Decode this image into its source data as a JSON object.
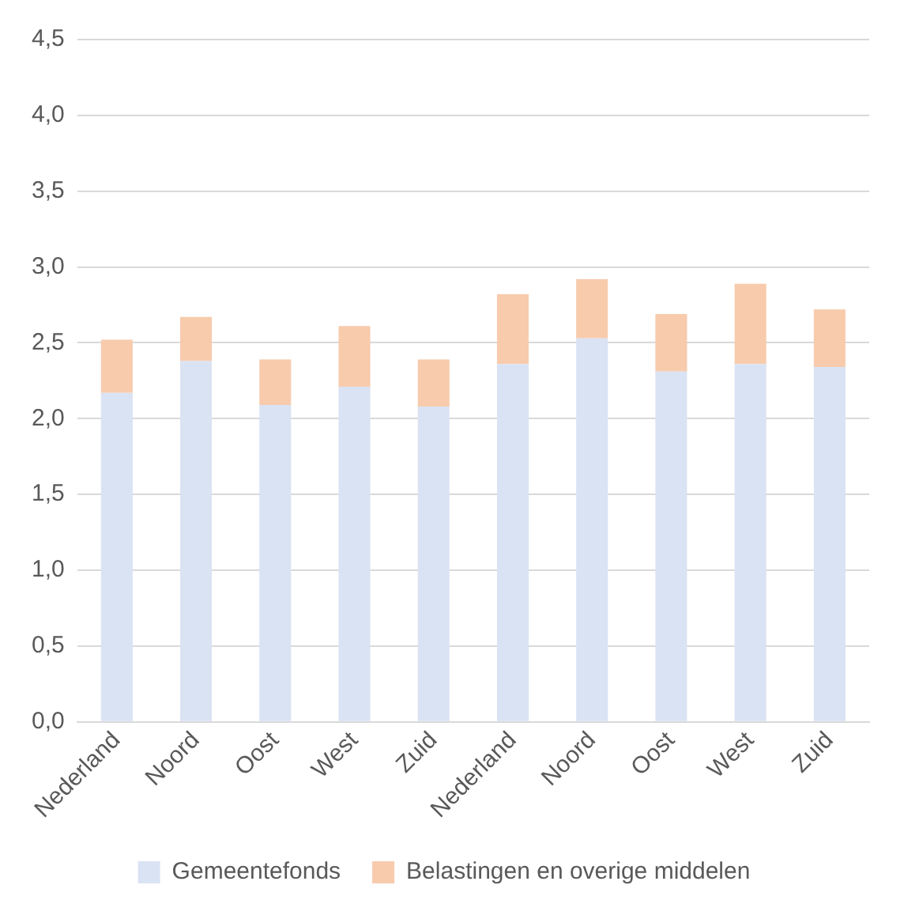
{
  "chart_data": {
    "type": "bar",
    "stacked": true,
    "categories": [
      "Nederland",
      "Noord",
      "Oost",
      "West",
      "Zuid",
      "Nederland",
      "Noord",
      "Oost",
      "West",
      "Zuid"
    ],
    "series": [
      {
        "name": "Gemeentefonds",
        "color": "#dae3f3",
        "values": [
          2.17,
          2.38,
          2.09,
          2.21,
          2.08,
          2.36,
          2.53,
          2.31,
          2.36,
          2.34
        ]
      },
      {
        "name": "Belastingen en overige middelen",
        "color": "#f8cbad",
        "values": [
          0.35,
          0.29,
          0.3,
          0.4,
          0.31,
          0.46,
          0.39,
          0.38,
          0.53,
          0.38
        ]
      }
    ],
    "ylim": [
      0,
      4.5
    ],
    "yticks": [
      {
        "value": 0,
        "label": "0,0"
      },
      {
        "value": 0.5,
        "label": "0,5"
      },
      {
        "value": 1,
        "label": "1,0"
      },
      {
        "value": 1.5,
        "label": "1,5"
      },
      {
        "value": 2,
        "label": "2,0"
      },
      {
        "value": 2.5,
        "label": "2,5"
      },
      {
        "value": 3,
        "label": "3,0"
      },
      {
        "value": 3.5,
        "label": "3,5"
      },
      {
        "value": 4,
        "label": "4,0"
      },
      {
        "value": 4.5,
        "label": "4,5"
      }
    ],
    "grid": "y",
    "legend": "bottom"
  }
}
